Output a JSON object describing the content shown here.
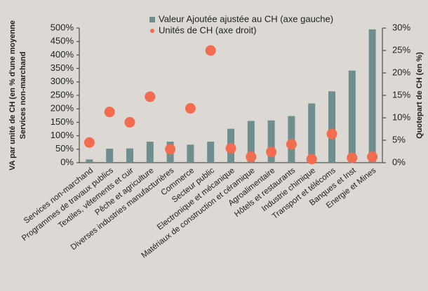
{
  "chart_data": {
    "type": "bar",
    "y_label": [
      "VA par unité de CH (en % d'une moyenne",
      "Services non-marchand"
    ],
    "y2_label": "Quotepart de CH (en %)",
    "categories": [
      "Services non-marchand",
      "Programmes de travaux publics",
      "Textiles, vêtements et cuir",
      "Pêche et agriculture",
      "Diverses industries manufacturières",
      "Commerce",
      "Secteur public",
      "Electronique et mécanique",
      "Matériaux de construction et céramique",
      "Agroalimentaire",
      "Hôtels et restaurants",
      "Industrie chimique",
      "Transport et télécoms",
      "Banques et Inst",
      "Energie et Mines"
    ],
    "series": [
      {
        "name": "Valeur Ajoutée ajustée au CH (axe gauche)",
        "color": "#6f8f8e",
        "values": [
          12,
          52,
          53,
          78,
          78,
          67,
          78,
          126,
          155,
          157,
          173,
          220,
          265,
          342,
          495
        ]
      },
      {
        "name": "Unités de CH (axe droit)",
        "color": "#f26c4f",
        "axis": "y2",
        "type": "scatter",
        "values": [
          4.5,
          11.3,
          9,
          14.7,
          3,
          12.1,
          25,
          3.2,
          1.3,
          2.4,
          4.1,
          0.8,
          6.4,
          1.1,
          1.3
        ]
      }
    ],
    "ylim": [
      0,
      500
    ],
    "yticks": [
      {
        "value": 0,
        "label": "0%"
      },
      {
        "value": 50,
        "label": "50%"
      },
      {
        "value": 100,
        "label": "100%"
      },
      {
        "value": 150,
        "label": "150%"
      },
      {
        "value": 200,
        "label": "200%"
      },
      {
        "value": 250,
        "label": "250%"
      },
      {
        "value": 300,
        "label": "300%"
      },
      {
        "value": 350,
        "label": "350%"
      },
      {
        "value": 400,
        "label": "400%"
      },
      {
        "value": 450,
        "label": "450%"
      },
      {
        "value": 500,
        "label": "500%"
      }
    ],
    "y2lim": [
      0,
      30
    ],
    "y2ticks": [
      {
        "value": 0,
        "label": "0%"
      },
      {
        "value": 5,
        "label": "5%"
      },
      {
        "value": 10,
        "label": "10%"
      },
      {
        "value": 15,
        "label": "15%"
      },
      {
        "value": 20,
        "label": "20%"
      },
      {
        "value": 25,
        "label": "25%"
      },
      {
        "value": 30,
        "label": "30%"
      }
    ],
    "grid": false
  }
}
